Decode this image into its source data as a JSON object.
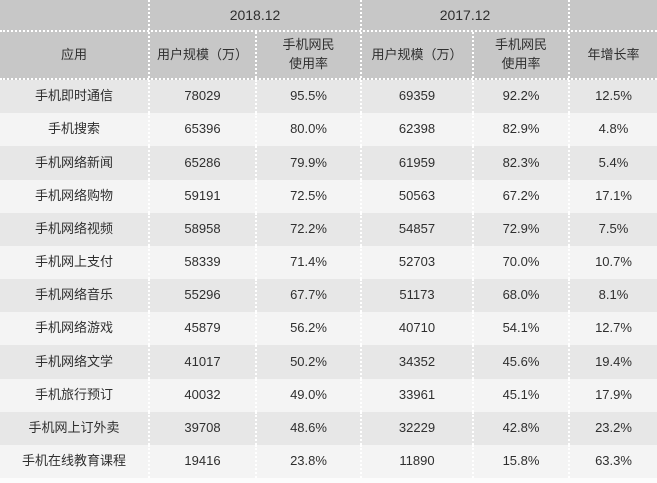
{
  "chart_data": {
    "type": "table",
    "title": "",
    "column_groups": [
      "2018.12",
      "2017.12"
    ],
    "header": {
      "group_2018": "2018.12",
      "group_2017": "2017.12",
      "col_app": "应用",
      "col_user_scale": "用户规模（万）",
      "col_rate_line1": "手机网民",
      "col_rate_line2": "使用率",
      "col_growth": "年增长率"
    },
    "rows": [
      {
        "app": "手机即时通信",
        "scale_2018": "78029",
        "rate_2018": "95.5%",
        "scale_2017": "69359",
        "rate_2017": "92.2%",
        "growth": "12.5%"
      },
      {
        "app": "手机搜索",
        "scale_2018": "65396",
        "rate_2018": "80.0%",
        "scale_2017": "62398",
        "rate_2017": "82.9%",
        "growth": "4.8%"
      },
      {
        "app": "手机网络新闻",
        "scale_2018": "65286",
        "rate_2018": "79.9%",
        "scale_2017": "61959",
        "rate_2017": "82.3%",
        "growth": "5.4%"
      },
      {
        "app": "手机网络购物",
        "scale_2018": "59191",
        "rate_2018": "72.5%",
        "scale_2017": "50563",
        "rate_2017": "67.2%",
        "growth": "17.1%"
      },
      {
        "app": "手机网络视频",
        "scale_2018": "58958",
        "rate_2018": "72.2%",
        "scale_2017": "54857",
        "rate_2017": "72.9%",
        "growth": "7.5%"
      },
      {
        "app": "手机网上支付",
        "scale_2018": "58339",
        "rate_2018": "71.4%",
        "scale_2017": "52703",
        "rate_2017": "70.0%",
        "growth": "10.7%"
      },
      {
        "app": "手机网络音乐",
        "scale_2018": "55296",
        "rate_2018": "67.7%",
        "scale_2017": "51173",
        "rate_2017": "68.0%",
        "growth": "8.1%"
      },
      {
        "app": "手机网络游戏",
        "scale_2018": "45879",
        "rate_2018": "56.2%",
        "scale_2017": "40710",
        "rate_2017": "54.1%",
        "growth": "12.7%"
      },
      {
        "app": "手机网络文学",
        "scale_2018": "41017",
        "rate_2018": "50.2%",
        "scale_2017": "34352",
        "rate_2017": "45.6%",
        "growth": "19.4%"
      },
      {
        "app": "手机旅行预订",
        "scale_2018": "40032",
        "rate_2018": "49.0%",
        "scale_2017": "33961",
        "rate_2017": "45.1%",
        "growth": "17.9%"
      },
      {
        "app": "手机网上订外卖",
        "scale_2018": "39708",
        "rate_2018": "48.6%",
        "scale_2017": "32229",
        "rate_2017": "42.8%",
        "growth": "23.2%"
      },
      {
        "app": "手机在线教育课程",
        "scale_2018": "19416",
        "rate_2018": "23.8%",
        "scale_2017": "11890",
        "rate_2017": "15.8%",
        "growth": "63.3%"
      }
    ]
  },
  "colors": {
    "header_bg": "#c7c7c7",
    "row_odd_bg": "#e7e7e7",
    "row_even_bg": "#f4f4f4",
    "grid_line": "#ffffff",
    "text": "#2f2f2f"
  }
}
